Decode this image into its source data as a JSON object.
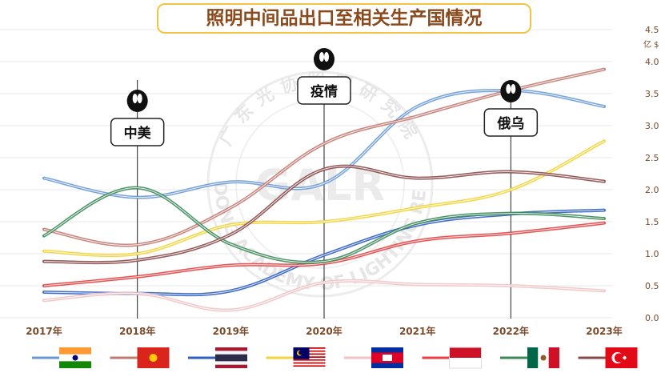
{
  "chart_data": {
    "type": "line",
    "title": "照明中间品出口至相关生产国情况",
    "ylabel": "亿 $",
    "ylim": [
      0,
      4.5
    ],
    "yticks": [
      "0.0",
      "0.5",
      "1.0",
      "1.5",
      "2.0",
      "2.5",
      "3.0",
      "3.5",
      "4.0",
      "4.5"
    ],
    "categories": [
      "2017年",
      "2018年",
      "2019年",
      "2020年",
      "2021年",
      "2022年",
      "2023年"
    ],
    "grid": "horizontal",
    "legend": "bottom",
    "series": [
      {
        "name": "India",
        "color": "#6a9ad6",
        "values": [
          2.18,
          1.88,
          2.12,
          2.1,
          3.3,
          3.55,
          3.3
        ]
      },
      {
        "name": "Vietnam",
        "color": "#c27a72",
        "values": [
          1.38,
          1.14,
          1.72,
          2.72,
          3.15,
          3.55,
          3.88
        ]
      },
      {
        "name": "Thailand",
        "color": "#2f5fc4",
        "values": [
          0.4,
          0.38,
          0.42,
          0.98,
          1.45,
          1.62,
          1.68
        ]
      },
      {
        "name": "Malaysia",
        "color": "#f2d43a",
        "values": [
          1.04,
          1.0,
          1.45,
          1.5,
          1.72,
          2.0,
          2.76
        ]
      },
      {
        "name": "Cambodia",
        "color": "#f1c3c7",
        "values": [
          0.27,
          0.38,
          0.12,
          0.55,
          0.52,
          0.5,
          0.42
        ]
      },
      {
        "name": "Indonesia",
        "color": "#e84040",
        "values": [
          0.5,
          0.64,
          0.82,
          0.85,
          1.2,
          1.32,
          1.48
        ]
      },
      {
        "name": "Mexico",
        "color": "#3c8a5a",
        "values": [
          1.28,
          2.03,
          1.15,
          0.88,
          1.48,
          1.63,
          1.55
        ]
      },
      {
        "name": "Turkey",
        "color": "#8a4a4a",
        "values": [
          0.88,
          0.9,
          1.3,
          2.32,
          2.18,
          2.28,
          2.13
        ]
      }
    ],
    "annotations": [
      {
        "label": "中美",
        "x_index": 1
      },
      {
        "label": "疫情",
        "x_index": 3
      },
      {
        "label": "俄乌",
        "x_index": 5
      }
    ]
  },
  "watermark": {
    "text_cn": "广东光协照明研究院",
    "text_en": "GUANGDONG ACADEMY OF LIGHTING RESEARCH",
    "logo": "GALR"
  },
  "legend_icons": [
    "flag-india",
    "flag-vietnam",
    "flag-thailand",
    "flag-malaysia",
    "flag-cambodia",
    "flag-indonesia",
    "flag-mexico",
    "flag-turkey"
  ]
}
